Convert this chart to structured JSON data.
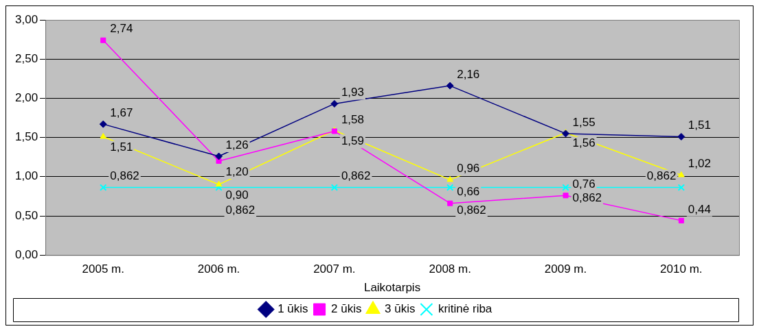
{
  "chart_data": {
    "type": "line",
    "xlabel": "Laikotarpis",
    "categories": [
      "2005 m.",
      "2006 m.",
      "2007 m.",
      "2008 m.",
      "2009 m.",
      "2010 m."
    ],
    "series": [
      {
        "name": "1 ūkis",
        "color": "#000080",
        "marker": "diamond",
        "values": [
          1.67,
          1.26,
          1.93,
          2.16,
          1.55,
          1.51
        ],
        "value_labels": [
          "1,67",
          "1,26",
          "1,93",
          "2,16",
          "1,55",
          "1,51"
        ]
      },
      {
        "name": "2 ūkis",
        "color": "#ff00ff",
        "marker": "square",
        "values": [
          2.74,
          1.2,
          1.58,
          0.66,
          0.76,
          0.44
        ],
        "value_labels": [
          "2,74",
          "1,20",
          "1,58",
          "0,66",
          "0,76",
          "0,44"
        ]
      },
      {
        "name": "3 ūkis",
        "color": "#ffff00",
        "marker": "triangle",
        "values": [
          1.51,
          0.9,
          1.59,
          0.96,
          1.56,
          1.02
        ],
        "value_labels": [
          "1,51",
          "0,90",
          "1,59",
          "0,96",
          "1,56",
          "1,02"
        ]
      },
      {
        "name": "kritinė riba",
        "color": "#00ffff",
        "marker": "cross",
        "values": [
          0.862,
          0.862,
          0.862,
          0.862,
          0.862,
          0.862
        ],
        "value_labels": [
          "0,862",
          "0,862",
          "0,862",
          "0,862",
          "0,862",
          "0,862"
        ]
      }
    ],
    "ylim": [
      0,
      3
    ],
    "yticks": [
      {
        "value": 0,
        "label": "0,00"
      },
      {
        "value": 0.5,
        "label": "0,50"
      },
      {
        "value": 1,
        "label": "1,00"
      },
      {
        "value": 1.5,
        "label": "1,50"
      },
      {
        "value": 2,
        "label": "2,00"
      },
      {
        "value": 2.5,
        "label": "2,50"
      },
      {
        "value": 3,
        "label": "3,00"
      }
    ],
    "grid": "y",
    "legend": "bottom"
  }
}
